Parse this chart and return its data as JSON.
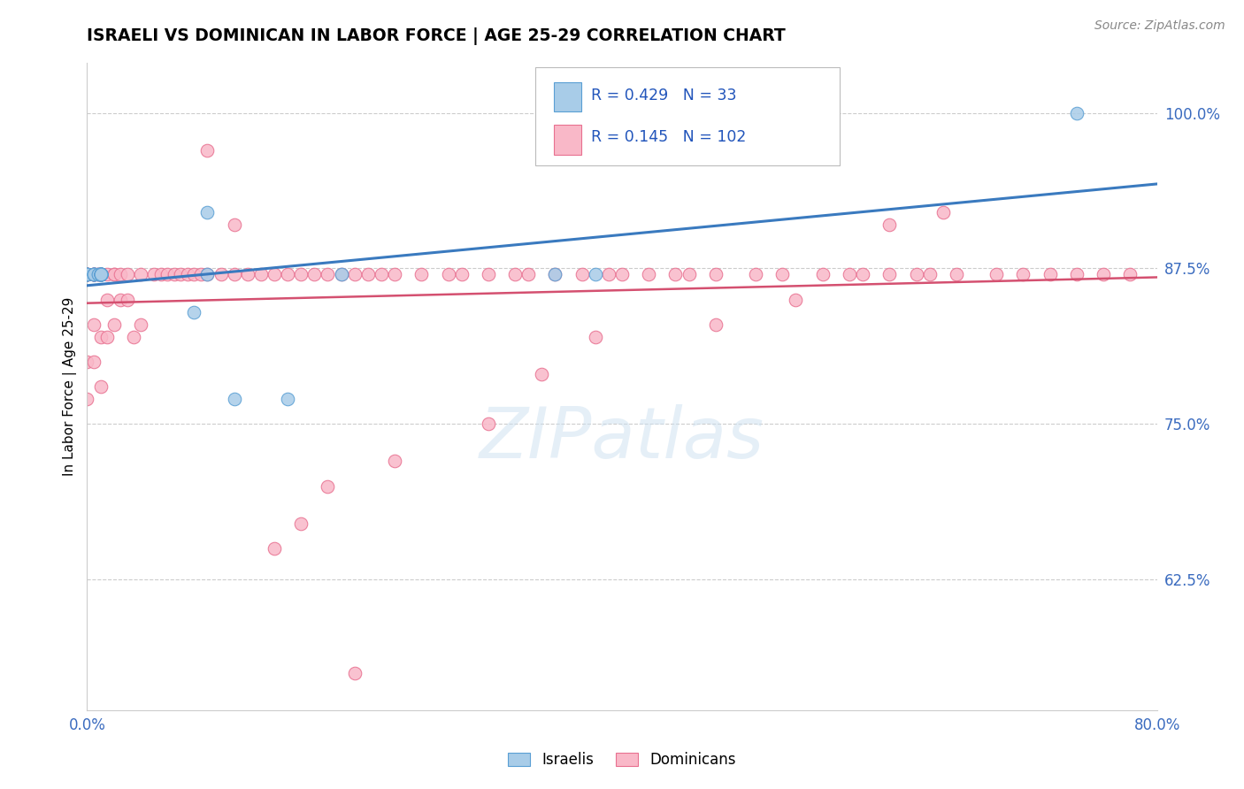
{
  "title": "ISRAELI VS DOMINICAN IN LABOR FORCE | AGE 25-29 CORRELATION CHART",
  "source_text": "Source: ZipAtlas.com",
  "ylabel": "In Labor Force | Age 25-29",
  "xlim": [
    0.0,
    0.8
  ],
  "ylim": [
    0.52,
    1.04
  ],
  "yticks": [
    0.625,
    0.75,
    0.875,
    1.0
  ],
  "ytick_labels": [
    "62.5%",
    "75.0%",
    "87.5%",
    "100.0%"
  ],
  "xticks": [
    0.0,
    0.8
  ],
  "xtick_labels": [
    "0.0%",
    "80.0%"
  ],
  "r_israeli": 0.429,
  "n_israeli": 33,
  "r_dominican": 0.145,
  "n_dominican": 102,
  "israeli_color": "#a8cce8",
  "israeli_edge": "#5a9fd4",
  "dominican_color": "#f9b8c8",
  "dominican_edge": "#e87090",
  "trend_israeli_color": "#3a7abf",
  "trend_dominican_color": "#d45070",
  "legend_label_israeli": "Israelis",
  "legend_label_dominican": "Dominicans",
  "watermark": "ZIPatlas",
  "israeli_x": [
    0.0,
    0.0,
    0.0,
    0.0,
    0.0,
    0.005,
    0.005,
    0.005,
    0.005,
    0.005,
    0.008,
    0.008,
    0.01,
    0.01,
    0.01,
    0.01,
    0.01,
    0.01,
    0.01,
    0.01,
    0.01,
    0.01,
    0.01,
    0.01,
    0.08,
    0.09,
    0.09,
    0.11,
    0.15,
    0.19,
    0.35,
    0.38,
    0.74
  ],
  "israeli_y": [
    0.87,
    0.87,
    0.87,
    0.87,
    0.87,
    0.87,
    0.87,
    0.87,
    0.87,
    0.87,
    0.87,
    0.87,
    0.87,
    0.87,
    0.87,
    0.87,
    0.87,
    0.87,
    0.87,
    0.87,
    0.87,
    0.87,
    0.87,
    0.87,
    0.84,
    0.87,
    0.92,
    0.77,
    0.77,
    0.87,
    0.87,
    0.87,
    1.0
  ],
  "dominican_x": [
    0.0,
    0.0,
    0.0,
    0.0,
    0.0,
    0.0,
    0.0,
    0.0,
    0.0,
    0.0,
    0.005,
    0.005,
    0.005,
    0.005,
    0.005,
    0.005,
    0.005,
    0.005,
    0.008,
    0.008,
    0.01,
    0.01,
    0.01,
    0.01,
    0.01,
    0.015,
    0.015,
    0.015,
    0.02,
    0.02,
    0.02,
    0.025,
    0.025,
    0.03,
    0.03,
    0.035,
    0.04,
    0.04,
    0.05,
    0.055,
    0.06,
    0.065,
    0.07,
    0.075,
    0.08,
    0.085,
    0.09,
    0.1,
    0.11,
    0.12,
    0.13,
    0.14,
    0.15,
    0.16,
    0.17,
    0.18,
    0.19,
    0.2,
    0.21,
    0.22,
    0.23,
    0.25,
    0.27,
    0.28,
    0.3,
    0.32,
    0.33,
    0.35,
    0.37,
    0.39,
    0.4,
    0.42,
    0.44,
    0.45,
    0.47,
    0.5,
    0.52,
    0.55,
    0.57,
    0.58,
    0.6,
    0.6,
    0.62,
    0.63,
    0.64,
    0.65,
    0.68,
    0.7,
    0.72,
    0.74,
    0.76,
    0.78,
    0.3,
    0.34,
    0.38,
    0.47,
    0.53,
    0.18,
    0.23,
    0.14,
    0.16,
    0.2,
    0.09,
    0.11
  ],
  "dominican_y": [
    0.87,
    0.87,
    0.87,
    0.87,
    0.87,
    0.87,
    0.87,
    0.87,
    0.8,
    0.77,
    0.87,
    0.87,
    0.87,
    0.87,
    0.87,
    0.87,
    0.83,
    0.8,
    0.87,
    0.87,
    0.87,
    0.87,
    0.87,
    0.82,
    0.78,
    0.87,
    0.85,
    0.82,
    0.87,
    0.87,
    0.83,
    0.87,
    0.85,
    0.87,
    0.85,
    0.82,
    0.87,
    0.83,
    0.87,
    0.87,
    0.87,
    0.87,
    0.87,
    0.87,
    0.87,
    0.87,
    0.87,
    0.87,
    0.87,
    0.87,
    0.87,
    0.87,
    0.87,
    0.87,
    0.87,
    0.87,
    0.87,
    0.87,
    0.87,
    0.87,
    0.87,
    0.87,
    0.87,
    0.87,
    0.87,
    0.87,
    0.87,
    0.87,
    0.87,
    0.87,
    0.87,
    0.87,
    0.87,
    0.87,
    0.87,
    0.87,
    0.87,
    0.87,
    0.87,
    0.87,
    0.87,
    0.91,
    0.87,
    0.87,
    0.92,
    0.87,
    0.87,
    0.87,
    0.87,
    0.87,
    0.87,
    0.87,
    0.75,
    0.79,
    0.82,
    0.83,
    0.85,
    0.7,
    0.72,
    0.65,
    0.67,
    0.55,
    0.97,
    0.91
  ]
}
